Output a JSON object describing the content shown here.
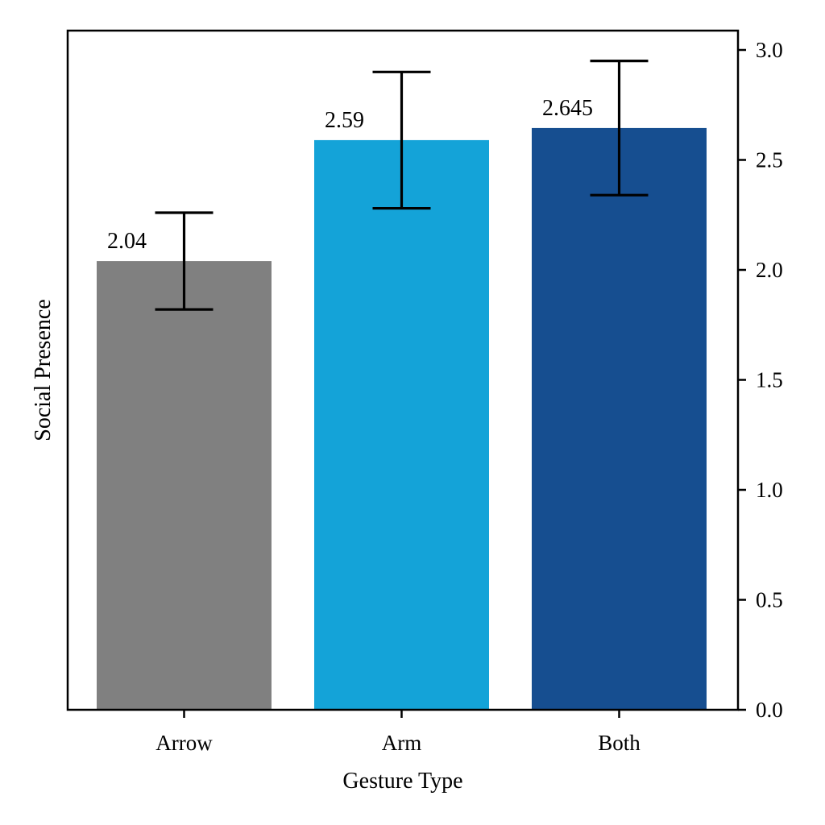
{
  "chart_data": {
    "type": "bar",
    "categories": [
      "Arrow",
      "Arm",
      "Both"
    ],
    "values": [
      2.04,
      2.59,
      2.645
    ],
    "value_labels": [
      "2.04",
      "2.59",
      "2.645"
    ],
    "error_low": [
      1.82,
      2.28,
      2.34
    ],
    "error_high": [
      2.26,
      2.9,
      2.95
    ],
    "colors": [
      "#808080",
      "#14A3D8",
      "#164E90"
    ],
    "error_bar_color": "#000000",
    "xlabel": "Gesture Type",
    "ylabel": "Social Presence",
    "ylim": [
      0,
      3.0
    ],
    "yticks": [
      0.0,
      0.5,
      1.0,
      1.5,
      2.0,
      2.5,
      3.0
    ],
    "ytick_labels": [
      "0.0",
      "0.5",
      "1.0",
      "1.5",
      "2.0",
      "2.5",
      "3.0"
    ],
    "y_axis_side": "right",
    "grid": false
  }
}
